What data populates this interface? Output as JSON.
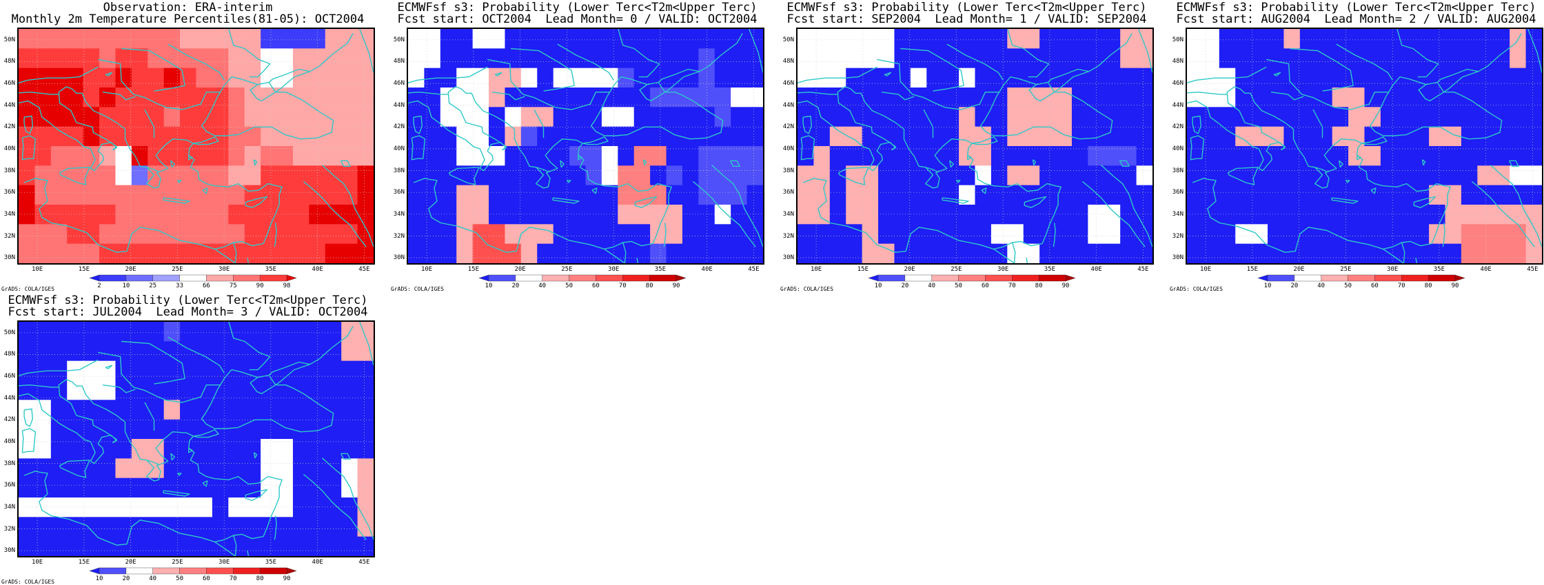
{
  "colors": {
    "coast": "#2ec8c8",
    "grid": "#cfcfcf"
  },
  "scale_obs": {
    "levels": [
      "2",
      "10",
      "25",
      "33",
      "66",
      "75",
      "90",
      "98"
    ],
    "colors": [
      "#1e1ef5",
      "#3c3cfa",
      "#6e6eff",
      "#a0a0ff",
      "#ffffff",
      "#ffa8a8",
      "#ff7474",
      "#ff3c3c",
      "#e60000"
    ]
  },
  "scale_prob": {
    "levels": [
      "10",
      "20",
      "40",
      "50",
      "60",
      "70",
      "80",
      "90"
    ],
    "colors": [
      "#1e1ef5",
      "#5050fa",
      "#ffffff",
      "#ffb0b0",
      "#ff8080",
      "#ff5050",
      "#f02020",
      "#d00000",
      "#b00000"
    ]
  },
  "credit": "GrADS: COLA/IGES",
  "panels": [
    {
      "title1": "Observation: ERA-interim",
      "title2": "Monthly 2m Temperature Percentiles(81-05): OCT2004",
      "scale": "obs",
      "grid": [
        "6666666666555551111555",
        "7777767766666554455555",
        "8888778778766554455555",
        "8888787777777655555555",
        "8888877776777655555555",
        "7777877777777665555555",
        "7766654877777656655555",
        "7666664266666557777778",
        "8666666666666677777778",
        "8777776666666777778888",
        "6667766666666677777778",
        "6666677777777777777888"
      ]
    },
    {
      "title1": "ECMWFsf s3: Probability (Lower Terc<T2m<Upper Terc)",
      "title2": "Fcst start: OCT2004  Lead Month= 0 / VALID: OCT2004",
      "scale": "prob",
      "grid": [
        "2200220000000000000000",
        "2200000000000000001000",
        "2002233202222100001000",
        "0022230000000001111122",
        "0022202330002200000100",
        "0002203100000000000000",
        "0002220000112044001111",
        "0000000000012440101111",
        "0003300000000444001110",
        "0003300000000333300200",
        "0003553330000003300000",
        "0003555300000001000000"
      ]
    },
    {
      "title1": "ECMWFsf s3: Probability (Lower Terc<T2m<Upper Terc)",
      "title2": "Fcst start: SEP2004  Lead Month= 1 / VALID: SEP2004",
      "scale": "prob",
      "grid": [
        "2222220000000330000033",
        "2222220000000000000033",
        "2220000200200000000000",
        "0000000000000333300000",
        "0000000000300333300000",
        "0033000000330333300000",
        "0300000000330000001110",
        "3303300000020330000002",
        "3303300000200000000000",
        "3303300000000000002200",
        "0000300000002200002200",
        "0000330000000220000000"
      ]
    },
    {
      "title1": "ECMWFsf s3: Probability (Lower Terc<T2m<Upper Terc)",
      "title2": "Fcst start: AUG2004  Lead Month= 2 / VALID: AUG2004",
      "scale": "prob",
      "grid": [
        "2200003000000000000030",
        "2200000000000000000030",
        "2220000000000000000000",
        "2220000003300000000000",
        "0000000000330000000000",
        "0003330003300003300000",
        "0000000000330000000000",
        "0000000000000000003322",
        "0000000000000003300000",
        "0000000000000000333333",
        "0002200000000003344443",
        "0000000000000000044443"
      ]
    },
    {
      "title1": "ECMWFsf s3: Probability (Lower Terc<T2m<Upper Terc)",
      "title2": "Fcst start: JUL2004  Lead Month= 3 / VALID: OCT2004",
      "scale": "prob",
      "grid": [
        "0000000001000000000033",
        "0000000000000000000033",
        "0002220000000000000000",
        "0002220000000000000000",
        "2200000003000000000000",
        "2200000000000000000000",
        "2200000330000002200000",
        "0000003330000002200023",
        "0000000000000002200023",
        "2222222222220222200003",
        "0000000000000000000003",
        "0000000000000000000000"
      ]
    }
  ],
  "lat_labels": [
    "50N",
    "48N",
    "46N",
    "44N",
    "42N",
    "40N",
    "38N",
    "36N",
    "34N",
    "32N",
    "30N"
  ],
  "lon_labels": [
    "10E",
    "15E",
    "20E",
    "25E",
    "30E",
    "35E",
    "40E",
    "45E"
  ]
}
